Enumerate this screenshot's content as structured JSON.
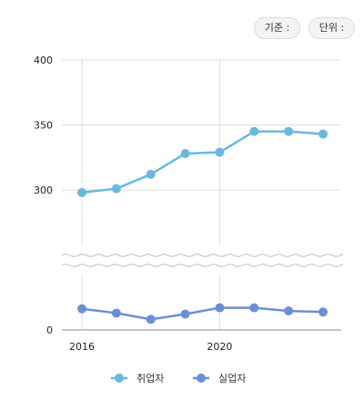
{
  "header": {
    "base_label": "기준 :",
    "unit_label": "단위 :"
  },
  "chart_data": {
    "type": "line",
    "x": [
      2016,
      2017,
      2018,
      2019,
      2020,
      2021,
      2022,
      2023
    ],
    "xticks": [
      {
        "value": 2016,
        "label": "2016"
      },
      {
        "value": 2020,
        "label": "2020"
      }
    ],
    "yticks": [
      {
        "value": 0,
        "label": "0"
      },
      {
        "value": 300,
        "label": "300"
      },
      {
        "value": 350,
        "label": "350"
      },
      {
        "value": 400,
        "label": "400"
      }
    ],
    "axis_break": [
      25,
      250
    ],
    "ylim": [
      0,
      400
    ],
    "grid": true,
    "legend": "bottom-left",
    "series": [
      {
        "name": "취업자",
        "color": "#6bb8de",
        "values": [
          298,
          301,
          312,
          328,
          329,
          345,
          345,
          343
        ]
      },
      {
        "name": "실업자",
        "color": "#6b8fd6",
        "values": [
          10,
          8,
          5,
          7.5,
          10.5,
          10.5,
          9,
          8.5
        ]
      }
    ]
  }
}
